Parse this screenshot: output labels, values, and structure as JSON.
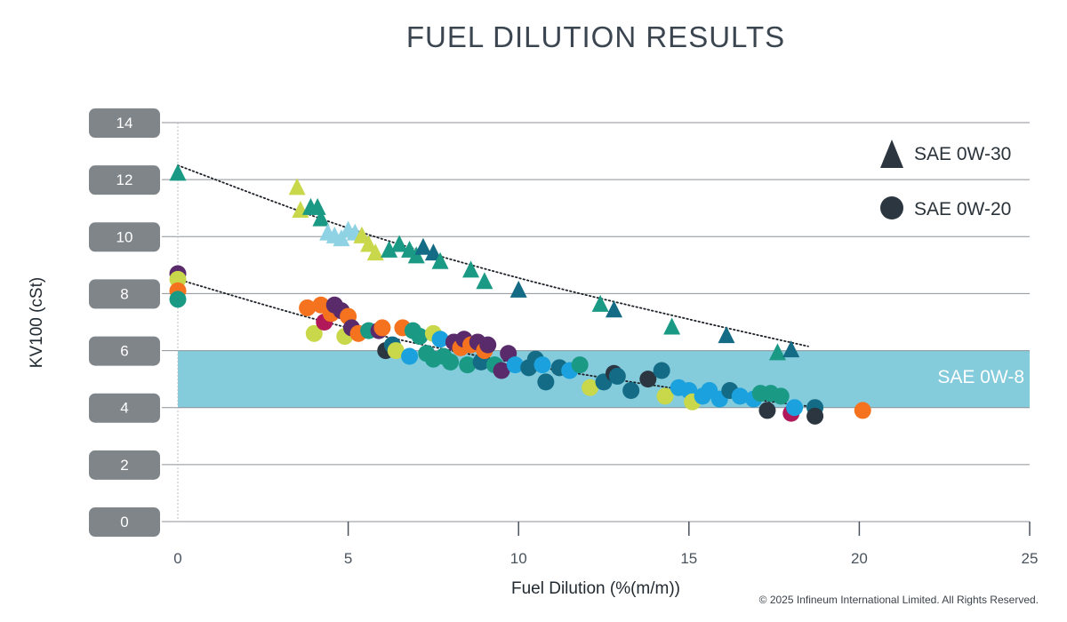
{
  "chart_data": {
    "type": "scatter",
    "title": "FUEL DILUTION RESULTS",
    "xlabel": "Fuel Dilution (%(m/m))",
    "ylabel": "KV100 (cSt)",
    "xlim": [
      0,
      25
    ],
    "ylim": [
      0,
      14
    ],
    "x_ticks": [
      "0",
      "5",
      "10",
      "15",
      "20",
      "25"
    ],
    "y_ticks": [
      "0",
      "2",
      "4",
      "6",
      "8",
      "10",
      "12",
      "14"
    ],
    "grid": true,
    "legend_position": "top-right",
    "legend": [
      {
        "label": "SAE 0W-30",
        "marker": "triangle",
        "color": "#2b3640"
      },
      {
        "label": "SAE 0W-20",
        "marker": "circle",
        "color": "#2b3640"
      }
    ],
    "band": {
      "label": "SAE 0W-8",
      "y_from": 4,
      "y_to": 6,
      "color": "#84cbdb"
    },
    "copyright": "© 2025 Infineum International Limited. All Rights Reserved.",
    "trendlines": [
      {
        "name": "SAE 0W-30",
        "points": [
          [
            0,
            12.5
          ],
          [
            5,
            10.3
          ],
          [
            10,
            8.55
          ],
          [
            15,
            7.1
          ],
          [
            18.5,
            6.15
          ]
        ]
      },
      {
        "name": "SAE 0W-20",
        "points": [
          [
            0,
            8.5
          ],
          [
            5,
            6.8
          ],
          [
            10,
            5.55
          ],
          [
            15,
            4.6
          ],
          [
            18.8,
            4.0
          ]
        ]
      }
    ],
    "series": [
      {
        "name": "SAE 0W-30",
        "marker": "triangle",
        "points": [
          {
            "x": 0,
            "y": 12.2,
            "c": "#1a9a85"
          },
          {
            "x": 3.5,
            "y": 11.7,
            "c": "#c9d84b"
          },
          {
            "x": 3.6,
            "y": 10.9,
            "c": "#c9d84b"
          },
          {
            "x": 3.9,
            "y": 11.0,
            "c": "#1a9a85"
          },
          {
            "x": 4.1,
            "y": 11.0,
            "c": "#1a9a85"
          },
          {
            "x": 4.2,
            "y": 10.6,
            "c": "#1a9a85"
          },
          {
            "x": 4.4,
            "y": 10.1,
            "c": "#8fd2e4"
          },
          {
            "x": 4.6,
            "y": 10.0,
            "c": "#8fd2e4"
          },
          {
            "x": 4.8,
            "y": 9.9,
            "c": "#8fd2e4"
          },
          {
            "x": 5.0,
            "y": 10.2,
            "c": "#8fd2e4"
          },
          {
            "x": 5.2,
            "y": 10.1,
            "c": "#8fd2e4"
          },
          {
            "x": 5.4,
            "y": 10.0,
            "c": "#c9d84b"
          },
          {
            "x": 5.6,
            "y": 9.7,
            "c": "#c9d84b"
          },
          {
            "x": 5.8,
            "y": 9.4,
            "c": "#c9d84b"
          },
          {
            "x": 6.2,
            "y": 9.5,
            "c": "#1a9a85"
          },
          {
            "x": 6.5,
            "y": 9.7,
            "c": "#1a9a85"
          },
          {
            "x": 6.8,
            "y": 9.5,
            "c": "#1a9a85"
          },
          {
            "x": 7.0,
            "y": 9.3,
            "c": "#1a9a85"
          },
          {
            "x": 7.2,
            "y": 9.6,
            "c": "#136b85"
          },
          {
            "x": 7.5,
            "y": 9.4,
            "c": "#136b85"
          },
          {
            "x": 7.7,
            "y": 9.1,
            "c": "#1a9a85"
          },
          {
            "x": 8.6,
            "y": 8.8,
            "c": "#1a9a85"
          },
          {
            "x": 9.0,
            "y": 8.4,
            "c": "#1a9a85"
          },
          {
            "x": 10.0,
            "y": 8.1,
            "c": "#136b85"
          },
          {
            "x": 12.4,
            "y": 7.6,
            "c": "#1a9a85"
          },
          {
            "x": 12.8,
            "y": 7.4,
            "c": "#136b85"
          },
          {
            "x": 14.5,
            "y": 6.8,
            "c": "#1a9a85"
          },
          {
            "x": 16.1,
            "y": 6.5,
            "c": "#136b85"
          },
          {
            "x": 17.6,
            "y": 5.9,
            "c": "#1a9a85"
          },
          {
            "x": 18.0,
            "y": 6.0,
            "c": "#136b85"
          }
        ]
      },
      {
        "name": "SAE 0W-20",
        "marker": "circle",
        "points": [
          {
            "x": 0,
            "y": 8.7,
            "c": "#5a2b6b"
          },
          {
            "x": 0,
            "y": 8.5,
            "c": "#c9d84b"
          },
          {
            "x": 0,
            "y": 8.1,
            "c": "#f5731e"
          },
          {
            "x": 0,
            "y": 7.8,
            "c": "#1a9a85"
          },
          {
            "x": 3.8,
            "y": 7.5,
            "c": "#f5731e"
          },
          {
            "x": 4.0,
            "y": 6.6,
            "c": "#c9d84b"
          },
          {
            "x": 4.2,
            "y": 7.6,
            "c": "#f5731e"
          },
          {
            "x": 4.3,
            "y": 7.0,
            "c": "#b0185a"
          },
          {
            "x": 4.5,
            "y": 7.3,
            "c": "#f5731e"
          },
          {
            "x": 4.6,
            "y": 7.6,
            "c": "#5a2b6b"
          },
          {
            "x": 4.8,
            "y": 7.4,
            "c": "#5a2b6b"
          },
          {
            "x": 4.9,
            "y": 6.5,
            "c": "#c9d84b"
          },
          {
            "x": 5.0,
            "y": 7.2,
            "c": "#f5731e"
          },
          {
            "x": 5.1,
            "y": 6.8,
            "c": "#5a2b6b"
          },
          {
            "x": 5.3,
            "y": 6.6,
            "c": "#f5731e"
          },
          {
            "x": 5.6,
            "y": 6.7,
            "c": "#1a9a85"
          },
          {
            "x": 5.9,
            "y": 6.7,
            "c": "#5a2b6b"
          },
          {
            "x": 6.0,
            "y": 6.8,
            "c": "#f5731e"
          },
          {
            "x": 6.1,
            "y": 6.0,
            "c": "#2b3640"
          },
          {
            "x": 6.3,
            "y": 6.2,
            "c": "#136b85"
          },
          {
            "x": 6.4,
            "y": 6.0,
            "c": "#c9d84b"
          },
          {
            "x": 6.6,
            "y": 6.8,
            "c": "#f5731e"
          },
          {
            "x": 6.8,
            "y": 5.8,
            "c": "#1ba2de"
          },
          {
            "x": 6.9,
            "y": 6.7,
            "c": "#1a9a85"
          },
          {
            "x": 7.1,
            "y": 6.5,
            "c": "#1a9a85"
          },
          {
            "x": 7.3,
            "y": 5.9,
            "c": "#1a9a85"
          },
          {
            "x": 7.5,
            "y": 6.6,
            "c": "#c9d84b"
          },
          {
            "x": 7.5,
            "y": 5.7,
            "c": "#1a9a85"
          },
          {
            "x": 7.7,
            "y": 6.4,
            "c": "#1ba2de"
          },
          {
            "x": 7.8,
            "y": 5.8,
            "c": "#1a9a85"
          },
          {
            "x": 8.0,
            "y": 5.6,
            "c": "#1a9a85"
          },
          {
            "x": 8.1,
            "y": 6.3,
            "c": "#5a2b6b"
          },
          {
            "x": 8.3,
            "y": 6.1,
            "c": "#f5731e"
          },
          {
            "x": 8.4,
            "y": 6.4,
            "c": "#5a2b6b"
          },
          {
            "x": 8.5,
            "y": 5.5,
            "c": "#1a9a85"
          },
          {
            "x": 8.6,
            "y": 6.2,
            "c": "#f5731e"
          },
          {
            "x": 8.8,
            "y": 6.3,
            "c": "#5a2b6b"
          },
          {
            "x": 8.9,
            "y": 5.6,
            "c": "#136b85"
          },
          {
            "x": 9.0,
            "y": 6.0,
            "c": "#f5731e"
          },
          {
            "x": 9.1,
            "y": 6.2,
            "c": "#5a2b6b"
          },
          {
            "x": 9.3,
            "y": 5.5,
            "c": "#1a9a85"
          },
          {
            "x": 9.5,
            "y": 5.3,
            "c": "#5a2b6b"
          },
          {
            "x": 9.7,
            "y": 5.9,
            "c": "#5a2b6b"
          },
          {
            "x": 9.9,
            "y": 5.5,
            "c": "#1ba2de"
          },
          {
            "x": 10.3,
            "y": 5.4,
            "c": "#136b85"
          },
          {
            "x": 10.5,
            "y": 5.7,
            "c": "#136b85"
          },
          {
            "x": 10.7,
            "y": 5.5,
            "c": "#1ba2de"
          },
          {
            "x": 10.8,
            "y": 4.9,
            "c": "#136b85"
          },
          {
            "x": 11.2,
            "y": 5.4,
            "c": "#136b85"
          },
          {
            "x": 11.5,
            "y": 5.3,
            "c": "#1ba2de"
          },
          {
            "x": 11.8,
            "y": 5.5,
            "c": "#1a9a85"
          },
          {
            "x": 12.1,
            "y": 4.7,
            "c": "#c9d84b"
          },
          {
            "x": 12.5,
            "y": 4.9,
            "c": "#136b85"
          },
          {
            "x": 12.8,
            "y": 5.2,
            "c": "#2b3640"
          },
          {
            "x": 12.9,
            "y": 5.1,
            "c": "#136b85"
          },
          {
            "x": 13.3,
            "y": 4.6,
            "c": "#136b85"
          },
          {
            "x": 13.8,
            "y": 5.0,
            "c": "#2b3640"
          },
          {
            "x": 14.2,
            "y": 5.3,
            "c": "#136b85"
          },
          {
            "x": 14.3,
            "y": 4.4,
            "c": "#c9d84b"
          },
          {
            "x": 14.7,
            "y": 4.7,
            "c": "#1ba2de"
          },
          {
            "x": 15.0,
            "y": 4.6,
            "c": "#1ba2de"
          },
          {
            "x": 15.1,
            "y": 4.2,
            "c": "#c9d84b"
          },
          {
            "x": 15.4,
            "y": 4.4,
            "c": "#1ba2de"
          },
          {
            "x": 15.6,
            "y": 4.6,
            "c": "#1ba2de"
          },
          {
            "x": 15.9,
            "y": 4.3,
            "c": "#1ba2de"
          },
          {
            "x": 16.2,
            "y": 4.6,
            "c": "#136b85"
          },
          {
            "x": 16.5,
            "y": 4.4,
            "c": "#1ba2de"
          },
          {
            "x": 16.9,
            "y": 4.3,
            "c": "#1ba2de"
          },
          {
            "x": 17.1,
            "y": 4.5,
            "c": "#1a9a85"
          },
          {
            "x": 17.3,
            "y": 3.9,
            "c": "#2b3640"
          },
          {
            "x": 17.4,
            "y": 4.5,
            "c": "#1a9a85"
          },
          {
            "x": 17.7,
            "y": 4.4,
            "c": "#1a9a85"
          },
          {
            "x": 18.0,
            "y": 3.8,
            "c": "#b0185a"
          },
          {
            "x": 18.1,
            "y": 4.0,
            "c": "#1ba2de"
          },
          {
            "x": 18.7,
            "y": 4.0,
            "c": "#136b85"
          },
          {
            "x": 18.7,
            "y": 3.7,
            "c": "#2b3640"
          },
          {
            "x": 20.1,
            "y": 3.9,
            "c": "#f5731e"
          }
        ]
      }
    ]
  }
}
